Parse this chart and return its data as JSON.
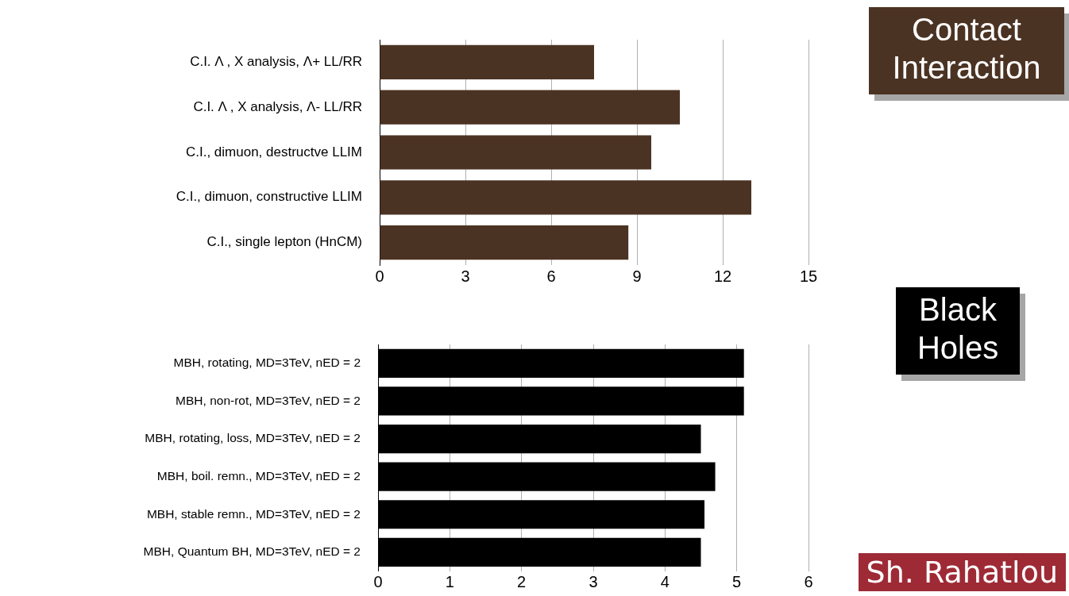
{
  "chart_data": [
    {
      "type": "bar",
      "orientation": "horizontal",
      "annotations": [
        "Contact Interaction"
      ],
      "categories": [
        "C.I. Λ , X analysis, Λ+ LL/RR",
        "C.I. Λ , X analysis, Λ- LL/RR",
        "C.I., dimuon, destructve LLIM",
        "C.I., dimuon, constructive LLIM",
        "C.I., single lepton (HnCM)"
      ],
      "values": [
        7.5,
        10.5,
        9.5,
        13.0,
        8.7
      ],
      "color": "#4b3323",
      "xlim": [
        0,
        15
      ],
      "xticks": [
        0,
        3,
        6,
        9,
        12,
        15
      ],
      "grid": "x",
      "legend": false
    },
    {
      "type": "bar",
      "orientation": "horizontal",
      "categories": [
        "MBH, rotating, MD=3TeV, nED = 2",
        "MBH, non-rot, MD=3TeV, nED = 2",
        "MBH, rotating, loss, MD=3TeV, nED = 2",
        "MBH, boil. remn., MD=3TeV, nED = 2",
        "MBH, stable remn., MD=3TeV, nED = 2",
        "MBH, Quantum BH, MD=3TeV, nED = 2"
      ],
      "values": [
        5.1,
        5.1,
        4.5,
        4.7,
        4.55,
        4.5
      ],
      "color": "#000000",
      "xlim": [
        0,
        6
      ],
      "xticks": [
        0,
        1,
        2,
        3,
        4,
        5,
        6
      ],
      "grid": "x",
      "legend": false,
      "annotations": [
        "Black Holes",
        "Sh. Rahatlou"
      ]
    }
  ]
}
